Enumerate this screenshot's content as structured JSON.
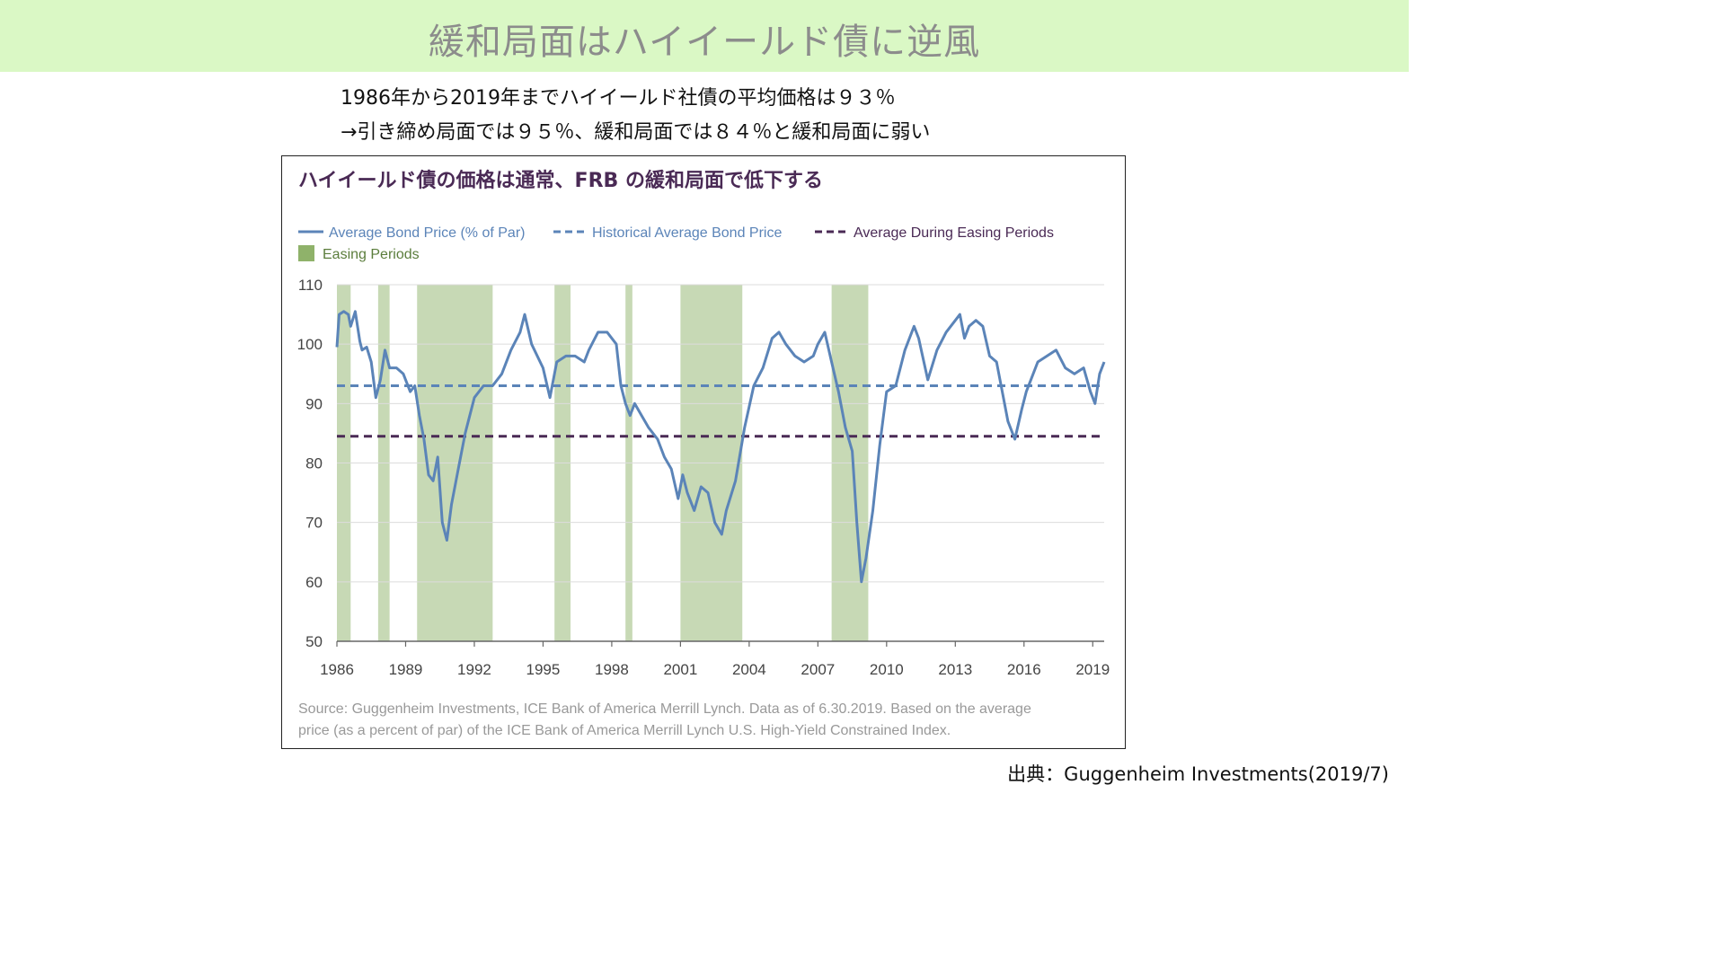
{
  "header": {
    "title": "緩和局面はハイイールド債に逆風"
  },
  "summary": {
    "line1": "1986年から2019年までハイイールド社債の平均価格は９３％",
    "line2": "→引き締め局面では９５％、緩和局面では８４％と緩和局面に弱い"
  },
  "footer": {
    "credit": "出典：Guggenheim Investments(2019/7)"
  },
  "colors": {
    "banner": "#daf8c5",
    "price_line": "#5b84b8",
    "hist_avg": "#5b84b8",
    "easing_avg": "#4a2a55",
    "easing_band": "#c7d9b5",
    "chart_title": "#4a2a55"
  },
  "chart_data": {
    "type": "line",
    "title": "ハイイールド債の価格は通常、FRB の緩和局面で低下する",
    "legend": {
      "price": "Average Bond Price (% of Par)",
      "historical": "Historical Average Bond Price",
      "easing_avg": "Average During Easing Periods",
      "easing": "Easing Periods"
    },
    "legend_position": "top-left",
    "grid": true,
    "ylim": [
      50,
      110
    ],
    "yticks": [
      "110",
      "100",
      "90",
      "80",
      "70",
      "60",
      "50"
    ],
    "xlim": [
      1986,
      2019.5
    ],
    "xticks": [
      "1986",
      "1989",
      "1992",
      "1995",
      "1998",
      "2001",
      "2004",
      "2007",
      "2010",
      "2013",
      "2016",
      "2019"
    ],
    "historical_average": 93,
    "easing_average": 84.5,
    "easing_periods": [
      [
        1986.0,
        1986.6
      ],
      [
        1987.8,
        1988.3
      ],
      [
        1989.5,
        1992.8
      ],
      [
        1995.5,
        1996.2
      ],
      [
        1998.6,
        1998.9
      ],
      [
        2001.0,
        2003.7
      ],
      [
        2007.6,
        2009.2
      ]
    ],
    "series": [
      {
        "x": [
          1986.0,
          1986.1,
          1986.3,
          1986.5,
          1986.6,
          1986.8,
          1987.0,
          1987.1,
          1987.3,
          1987.5,
          1987.7,
          1987.9,
          1988.1,
          1988.3,
          1988.6,
          1988.9,
          1989.2,
          1989.4,
          1989.6,
          1989.8,
          1990.0,
          1990.2,
          1990.4,
          1990.6,
          1990.8,
          1991.0,
          1991.3,
          1991.6,
          1992.0,
          1992.4,
          1992.8,
          1993.2,
          1993.6,
          1994.0,
          1994.2,
          1994.5,
          1995.0,
          1995.3,
          1995.6,
          1996.0,
          1996.4,
          1996.8,
          1997.0,
          1997.4,
          1997.8,
          1998.2,
          1998.4,
          1998.6,
          1998.8,
          1999.0,
          1999.3,
          1999.6,
          2000.0,
          2000.3,
          2000.6,
          2000.9,
          2001.1,
          2001.3,
          2001.6,
          2001.9,
          2002.2,
          2002.5,
          2002.8,
          2003.0,
          2003.4,
          2003.8,
          2004.2,
          2004.6,
          2005.0,
          2005.3,
          2005.6,
          2006.0,
          2006.4,
          2006.8,
          2007.0,
          2007.3,
          2007.6,
          2007.9,
          2008.2,
          2008.5,
          2008.7,
          2008.9,
          2009.1,
          2009.4,
          2009.7,
          2010.0,
          2010.4,
          2010.8,
          2011.2,
          2011.4,
          2011.8,
          2012.2,
          2012.6,
          2013.0,
          2013.2,
          2013.4,
          2013.6,
          2013.9,
          2014.2,
          2014.5,
          2014.8,
          2015.0,
          2015.3,
          2015.6,
          2015.9,
          2016.1,
          2016.3,
          2016.6,
          2017.0,
          2017.4,
          2017.8,
          2018.2,
          2018.6,
          2018.9,
          2019.1,
          2019.3,
          2019.5
        ],
        "y": [
          99.5,
          105,
          105.5,
          105,
          103,
          105.5,
          100.5,
          99,
          99.5,
          97,
          91,
          94,
          99,
          96,
          96,
          95,
          92,
          93,
          88,
          84,
          78,
          77,
          81,
          70,
          67,
          73,
          79,
          85,
          91,
          93,
          93,
          95,
          99,
          102,
          105,
          100,
          96,
          91,
          97,
          98,
          98,
          97,
          99,
          102,
          102,
          100,
          93,
          90,
          88,
          90,
          88,
          86,
          84,
          81,
          79,
          74,
          78,
          75,
          72,
          76,
          75,
          70,
          68,
          72,
          77,
          86,
          93,
          96,
          101,
          102,
          100,
          98,
          97,
          98,
          100,
          102,
          97,
          92,
          86,
          82,
          70,
          60,
          64,
          72,
          83,
          92,
          93,
          99,
          103,
          101,
          94,
          99,
          102,
          104,
          105,
          101,
          103,
          104,
          103,
          98,
          97,
          93,
          87,
          84,
          89,
          92,
          94,
          97,
          98,
          99,
          96,
          95,
          96,
          92,
          90,
          95,
          97
        ]
      }
    ],
    "note": "Source: Guggenheim Investments, ICE Bank of America Merrill Lynch. Data as of 6.30.2019. Based on the average price (as a percent of par) of the ICE Bank of America Merrill Lynch U.S. High-Yield Constrained Index.",
    "note_lines": [
      "Source: Guggenheim Investments, ICE Bank of America Merrill Lynch. Data as of 6.30.2019. Based on the average",
      "price (as a percent of par) of the ICE Bank of America Merrill Lynch U.S. High-Yield Constrained Index."
    ]
  }
}
